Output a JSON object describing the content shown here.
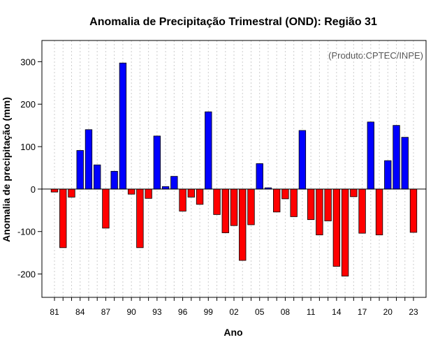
{
  "chart_data": {
    "type": "bar",
    "title": "Anomalia de Precipitação Trimestral (OND): Região 31",
    "xlabel": "Ano",
    "ylabel": "Anomalia de precipitação (mm)",
    "credit": "(Produto:CPTEC/INPE)",
    "ylim": [
      -255,
      350
    ],
    "yticks": [
      -200,
      -100,
      0,
      100,
      200,
      300
    ],
    "xtick_labels": [
      "81",
      "84",
      "87",
      "90",
      "93",
      "96",
      "99",
      "02",
      "05",
      "08",
      "11",
      "14",
      "17",
      "20",
      "23"
    ],
    "categories": [
      "1981",
      "1982",
      "1983",
      "1984",
      "1985",
      "1986",
      "1987",
      "1988",
      "1989",
      "1990",
      "1991",
      "1992",
      "1993",
      "1994",
      "1995",
      "1996",
      "1997",
      "1998",
      "1999",
      "2000",
      "2001",
      "2002",
      "2003",
      "2004",
      "2005",
      "2006",
      "2007",
      "2008",
      "2009",
      "2010",
      "2011",
      "2012",
      "2013",
      "2014",
      "2015",
      "2016",
      "2017",
      "2018",
      "2019",
      "2020",
      "2021",
      "2022",
      "2023"
    ],
    "values": [
      -7,
      -138,
      -19,
      91,
      140,
      57,
      -92,
      42,
      297,
      -12,
      -138,
      -22,
      125,
      6,
      30,
      -52,
      -19,
      -36,
      182,
      -60,
      -103,
      -86,
      -168,
      -84,
      60,
      3,
      -54,
      -23,
      -65,
      138,
      -72,
      -108,
      -75,
      -182,
      -205,
      -18,
      -104,
      158,
      -108,
      67,
      150,
      122,
      -102
    ],
    "colors": {
      "positive": "#0000ff",
      "negative": "#ff0000",
      "grid": "#cccccc"
    },
    "grid": true
  }
}
